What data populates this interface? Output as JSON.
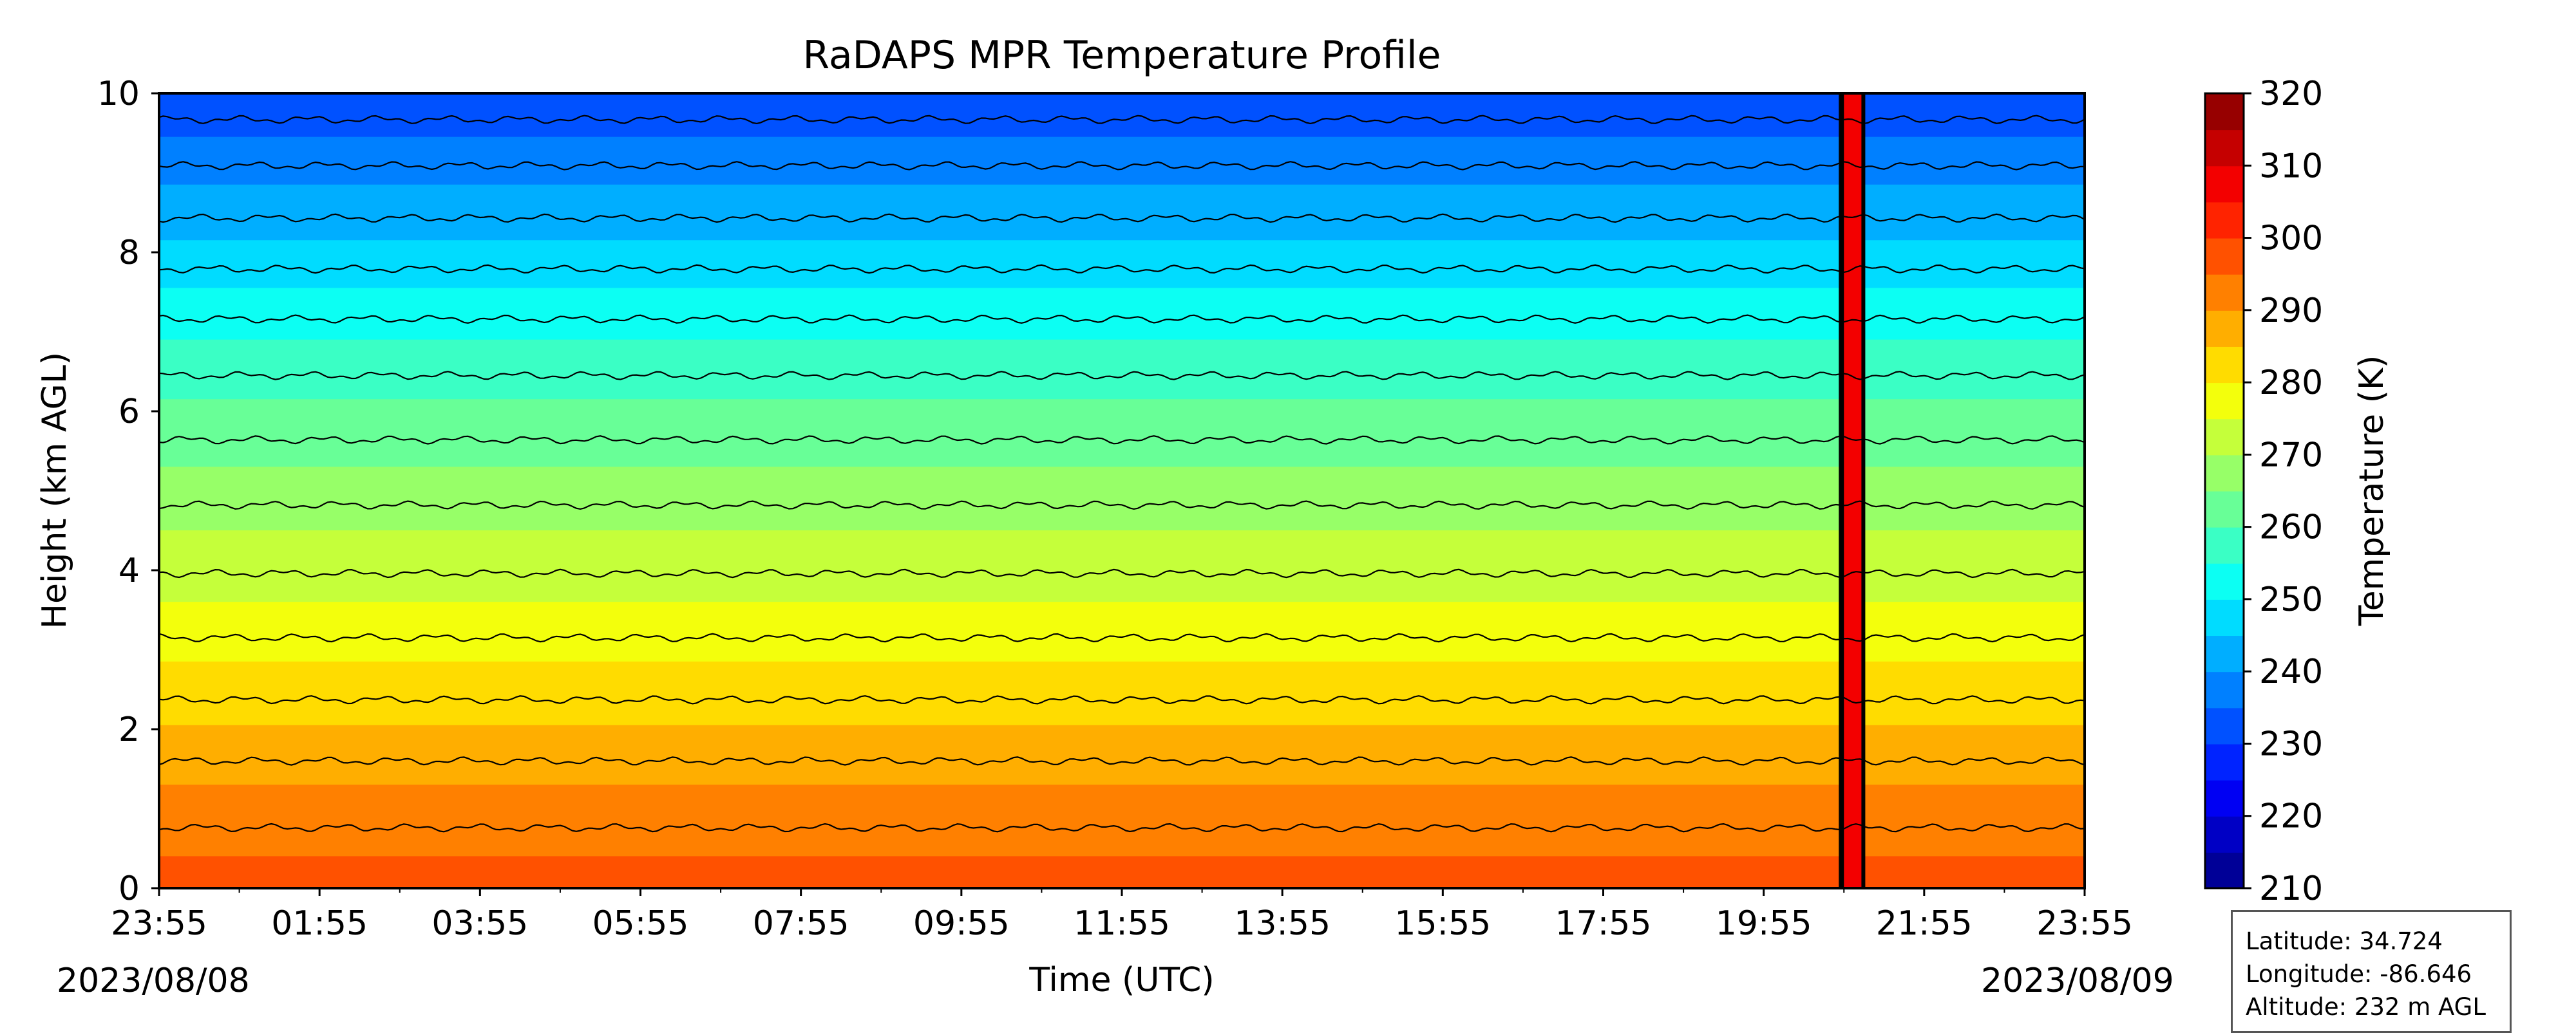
{
  "chart_data": {
    "type": "heatmap",
    "title": "RaDAPS MPR Temperature Profile",
    "xlabel": "Time (UTC)",
    "ylabel": "Height (km AGL)",
    "colorbar_label": "Temperature (K)",
    "xlim": [
      "23:55",
      "23:55"
    ],
    "x_ticks": [
      "23:55",
      "01:55",
      "03:55",
      "05:55",
      "07:55",
      "09:55",
      "11:55",
      "13:55",
      "15:55",
      "17:55",
      "19:55",
      "21:55",
      "23:55"
    ],
    "x_tick_hours": [
      0,
      2,
      4,
      6,
      8,
      10,
      12,
      14,
      16,
      18,
      20,
      22,
      24
    ],
    "start_date": "2023/08/08",
    "end_date": "2023/08/09",
    "ylim": [
      0,
      10
    ],
    "y_ticks": [
      0,
      2,
      4,
      6,
      8,
      10
    ],
    "colorbar_range": [
      210,
      320
    ],
    "colorbar_ticks": [
      210,
      220,
      230,
      240,
      250,
      260,
      270,
      280,
      290,
      300,
      310,
      320
    ],
    "colorbar_levels": [
      210,
      215,
      220,
      225,
      230,
      235,
      240,
      245,
      250,
      255,
      260,
      265,
      270,
      275,
      280,
      285,
      290,
      295,
      300,
      305,
      310,
      315,
      320
    ],
    "colormap": "jet",
    "contour_interval_K": 5,
    "profile_height_km": [
      0,
      0.4,
      1.3,
      2.05,
      2.85,
      3.6,
      4.5,
      5.3,
      6.15,
      6.9,
      7.55,
      8.15,
      8.85,
      9.45,
      10
    ],
    "profile_temperature_K": [
      298,
      295,
      290,
      285,
      280,
      275,
      270,
      265,
      260,
      255,
      250,
      245,
      240,
      235,
      230
    ],
    "warm_column": {
      "start_hour": 21.0,
      "end_hour": 21.25,
      "temperature_K": 305
    }
  },
  "info": {
    "latitude": "Latitude: 34.724",
    "longitude": "Longitude: -86.646",
    "altitude": "Altitude: 232 m AGL"
  },
  "colors": {
    "contour": "#000000",
    "axis": "#000000",
    "info_border": "#555555"
  }
}
